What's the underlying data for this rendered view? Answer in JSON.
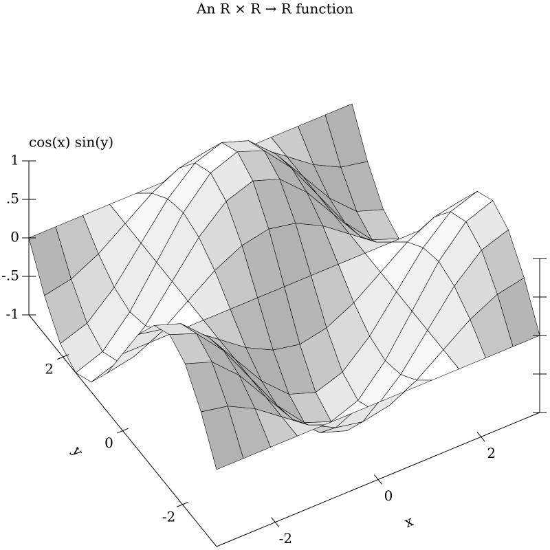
{
  "chart_data": {
    "type": "surface3d",
    "title": "An R × R → R function",
    "xlabel": "x",
    "ylabel": "y",
    "zlabel": "cos(x) sin(y)",
    "x": [
      -3.14,
      -2.62,
      -2.09,
      -1.57,
      -1.05,
      -0.52,
      0,
      0.52,
      1.05,
      1.57,
      2.09,
      2.62,
      3.14
    ],
    "y": [
      -3.14,
      -2.62,
      -2.09,
      -1.57,
      -1.05,
      -0.52,
      0,
      0.52,
      1.05,
      1.57,
      2.09,
      2.62,
      3.14
    ],
    "z": [
      [
        0,
        0,
        0,
        0,
        0,
        0,
        0,
        0,
        0,
        0,
        0,
        0,
        0
      ],
      [
        0.5,
        0.43,
        0.25,
        0,
        -0.25,
        -0.43,
        -0.5,
        -0.43,
        -0.25,
        0,
        0.25,
        0.43,
        0.5
      ],
      [
        0.87,
        0.75,
        0.43,
        0,
        -0.43,
        -0.75,
        -0.87,
        -0.75,
        -0.43,
        0,
        0.43,
        0.75,
        0.87
      ],
      [
        1,
        0.87,
        0.5,
        0,
        -0.5,
        -0.87,
        -1,
        -0.87,
        -0.5,
        0,
        0.5,
        0.87,
        1
      ],
      [
        0.87,
        0.75,
        0.43,
        0,
        -0.43,
        -0.75,
        -0.87,
        -0.75,
        -0.43,
        0,
        0.43,
        0.75,
        0.87
      ],
      [
        0.5,
        0.43,
        0.25,
        0,
        -0.25,
        -0.43,
        -0.5,
        -0.43,
        -0.25,
        0,
        0.25,
        0.43,
        0.5
      ],
      [
        0,
        0,
        0,
        0,
        0,
        0,
        0,
        0,
        0,
        0,
        0,
        0,
        0
      ],
      [
        -0.5,
        -0.43,
        -0.25,
        0,
        0.25,
        0.43,
        0.5,
        0.43,
        0.25,
        0,
        -0.25,
        -0.43,
        -0.5
      ],
      [
        -0.87,
        -0.75,
        -0.43,
        0,
        0.43,
        0.75,
        0.87,
        0.75,
        0.43,
        0,
        -0.43,
        -0.75,
        -0.87
      ],
      [
        -1,
        -0.87,
        -0.5,
        0,
        0.5,
        0.87,
        1,
        0.87,
        0.5,
        0,
        -0.5,
        -0.87,
        -1
      ],
      [
        -0.87,
        -0.75,
        -0.43,
        0,
        0.43,
        0.75,
        0.87,
        0.75,
        0.43,
        0,
        -0.43,
        -0.75,
        -0.87
      ],
      [
        -0.5,
        -0.43,
        -0.25,
        0,
        0.25,
        0.43,
        0.5,
        0.43,
        0.25,
        0,
        -0.25,
        -0.43,
        -0.5
      ],
      [
        0,
        0,
        0,
        0,
        0,
        0,
        0,
        0,
        0,
        0,
        0,
        0,
        0
      ]
    ],
    "xlim": [
      -3.14,
      3.14
    ],
    "ylim": [
      -3.14,
      3.14
    ],
    "zlim": [
      -1,
      1
    ],
    "xticks": [
      -2,
      0,
      2
    ],
    "yticks": [
      -2,
      0,
      2
    ],
    "zticks": [
      -1,
      {
        "value": -0.5,
        "label": "-.5"
      },
      0,
      {
        "value": 0.5,
        "label": ".5"
      },
      1
    ]
  }
}
